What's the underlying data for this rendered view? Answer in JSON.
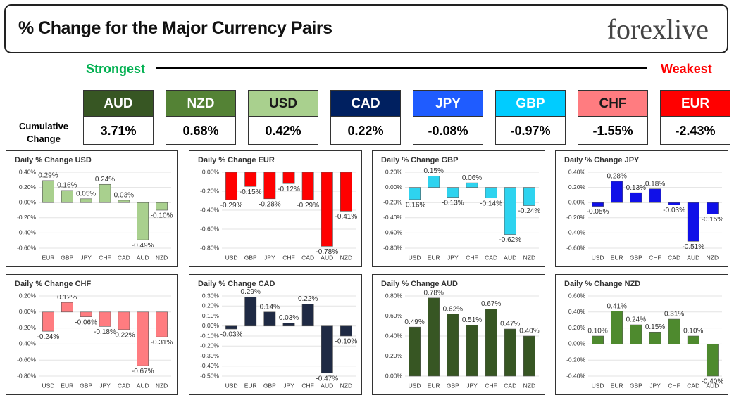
{
  "header": {
    "title": "% Change for the Major Currency Pairs",
    "brand": "forexlive"
  },
  "strength": {
    "strongest": "Strongest",
    "weakest": "Weakest",
    "row_label": "Cumulative Change",
    "currencies": [
      {
        "name": "AUD",
        "change": "3.71%",
        "color": "#375623"
      },
      {
        "name": "NZD",
        "change": "0.68%",
        "color": "#548235"
      },
      {
        "name": "USD",
        "change": "0.42%",
        "color": "#a9d08e"
      },
      {
        "name": "CAD",
        "change": "0.22%",
        "color": "#002060"
      },
      {
        "name": "JPY",
        "change": "-0.08%",
        "color": "#1f5cff"
      },
      {
        "name": "GBP",
        "change": "-0.97%",
        "color": "#00ccff"
      },
      {
        "name": "CHF",
        "change": "-1.55%",
        "color": "#ff7c80"
      },
      {
        "name": "EUR",
        "change": "-2.43%",
        "color": "#ff0000"
      }
    ]
  },
  "chart_data": [
    {
      "type": "bar",
      "title": "Daily % Change USD",
      "color": "#a9d08e",
      "categories": [
        "EUR",
        "GBP",
        "JPY",
        "CHF",
        "CAD",
        "AUD",
        "NZD"
      ],
      "values": [
        0.29,
        0.16,
        0.05,
        0.24,
        0.03,
        -0.49,
        -0.1
      ],
      "value_labels": [
        "0.29%",
        "0.16%",
        "0.05%",
        "0.24%",
        "0.03%",
        "-0.49%",
        "-0.10%"
      ],
      "ylim": [
        -0.6,
        0.4
      ],
      "yticks": [
        {
          "value": 0.4,
          "label": "0.40%"
        },
        {
          "value": 0.2,
          "label": "0.20%"
        },
        {
          "value": 0,
          "label": "0.00%"
        },
        {
          "value": -0.2,
          "label": "-0.20%"
        },
        {
          "value": -0.4,
          "label": "-0.40%"
        },
        {
          "value": -0.6,
          "label": "-0.60%"
        }
      ]
    },
    {
      "type": "bar",
      "title": "Daily % Change EUR",
      "color": "#ff0000",
      "categories": [
        "USD",
        "GBP",
        "JPY",
        "CHF",
        "CAD",
        "AUD",
        "NZD"
      ],
      "values": [
        -0.29,
        -0.15,
        -0.28,
        -0.12,
        -0.29,
        -0.78,
        -0.41
      ],
      "value_labels": [
        "-0.29%",
        "-0.15%",
        "-0.28%",
        "-0.12%",
        "-0.29%",
        "-0.78%",
        "-0.41%"
      ],
      "ylim": [
        -0.8,
        0
      ],
      "yticks": [
        {
          "value": 0,
          "label": "0.00%"
        },
        {
          "value": -0.2,
          "label": "-0.20%"
        },
        {
          "value": -0.4,
          "label": "-0.40%"
        },
        {
          "value": -0.6,
          "label": "-0.60%"
        },
        {
          "value": -0.8,
          "label": "-0.80%"
        }
      ]
    },
    {
      "type": "bar",
      "title": "Daily % Change GBP",
      "color": "#2ed3ef",
      "categories": [
        "USD",
        "EUR",
        "JPY",
        "CHF",
        "CAD",
        "AUD",
        "NZD"
      ],
      "values": [
        -0.16,
        0.15,
        -0.13,
        0.06,
        -0.14,
        -0.62,
        -0.24
      ],
      "value_labels": [
        "-0.16%",
        "0.15%",
        "-0.13%",
        "0.06%",
        "-0.14%",
        "-0.62%",
        "-0.24%"
      ],
      "ylim": [
        -0.8,
        0.2
      ],
      "yticks": [
        {
          "value": 0.2,
          "label": "0.20%"
        },
        {
          "value": 0,
          "label": "0.00%"
        },
        {
          "value": -0.2,
          "label": "-0.20%"
        },
        {
          "value": -0.4,
          "label": "-0.40%"
        },
        {
          "value": -0.6,
          "label": "-0.60%"
        },
        {
          "value": -0.8,
          "label": "-0.80%"
        }
      ]
    },
    {
      "type": "bar",
      "title": "Daily % Change JPY",
      "color": "#1010e8",
      "categories": [
        "USD",
        "EUR",
        "GBP",
        "CHF",
        "CAD",
        "AUD",
        "NZD"
      ],
      "values": [
        -0.05,
        0.28,
        0.13,
        0.18,
        -0.03,
        -0.51,
        -0.15
      ],
      "value_labels": [
        "-0.05%",
        "0.28%",
        "0.13%",
        "0.18%",
        "-0.03%",
        "-0.51%",
        "-0.15%"
      ],
      "ylim": [
        -0.6,
        0.4
      ],
      "yticks": [
        {
          "value": 0.4,
          "label": "0.40%"
        },
        {
          "value": 0.2,
          "label": "0.20%"
        },
        {
          "value": 0,
          "label": "0.00%"
        },
        {
          "value": -0.2,
          "label": "-0.20%"
        },
        {
          "value": -0.4,
          "label": "-0.40%"
        },
        {
          "value": -0.6,
          "label": "-0.60%"
        }
      ]
    },
    {
      "type": "bar",
      "title": "Daily % Change CHF",
      "color": "#ff7c80",
      "categories": [
        "USD",
        "EUR",
        "GBP",
        "JPY",
        "CAD",
        "AUD",
        "NZD"
      ],
      "values": [
        -0.24,
        0.12,
        -0.06,
        -0.18,
        -0.22,
        -0.67,
        -0.31
      ],
      "value_labels": [
        "-0.24%",
        "0.12%",
        "-0.06%",
        "-0.18%",
        "-0.22%",
        "-0.67%",
        "-0.31%"
      ],
      "ylim": [
        -0.8,
        0.2
      ],
      "yticks": [
        {
          "value": 0.2,
          "label": "0.20%"
        },
        {
          "value": 0,
          "label": "0.00%"
        },
        {
          "value": -0.2,
          "label": "-0.20%"
        },
        {
          "value": -0.4,
          "label": "-0.40%"
        },
        {
          "value": -0.6,
          "label": "-0.60%"
        },
        {
          "value": -0.8,
          "label": "-0.80%"
        }
      ]
    },
    {
      "type": "bar",
      "title": "Daily % Change CAD",
      "color": "#1f2a44",
      "categories": [
        "USD",
        "EUR",
        "GBP",
        "JPY",
        "CHF",
        "AUD",
        "NZD"
      ],
      "values": [
        -0.03,
        0.29,
        0.14,
        0.03,
        0.22,
        -0.47,
        -0.1
      ],
      "value_labels": [
        "-0.03%",
        "0.29%",
        "0.14%",
        "0.03%",
        "0.22%",
        "-0.47%",
        "-0.10%"
      ],
      "ylim": [
        -0.5,
        0.3
      ],
      "yticks": [
        {
          "value": 0.3,
          "label": "0.30%"
        },
        {
          "value": 0.2,
          "label": "0.20%"
        },
        {
          "value": 0.1,
          "label": "0.10%"
        },
        {
          "value": 0,
          "label": "0.00%"
        },
        {
          "value": -0.1,
          "label": "-0.10%"
        },
        {
          "value": -0.2,
          "label": "-0.20%"
        },
        {
          "value": -0.3,
          "label": "-0.30%"
        },
        {
          "value": -0.4,
          "label": "-0.40%"
        },
        {
          "value": -0.5,
          "label": "-0.50%"
        }
      ]
    },
    {
      "type": "bar",
      "title": "Daily % Change AUD",
      "color": "#375623",
      "categories": [
        "USD",
        "EUR",
        "GBP",
        "JPY",
        "CHF",
        "CAD",
        "NZD"
      ],
      "values": [
        0.49,
        0.78,
        0.62,
        0.51,
        0.67,
        0.47,
        0.4
      ],
      "value_labels": [
        "0.49%",
        "0.78%",
        "0.62%",
        "0.51%",
        "0.67%",
        "0.47%",
        "0.40%"
      ],
      "ylim": [
        0,
        0.8
      ],
      "yticks": [
        {
          "value": 0.8,
          "label": "0.80%"
        },
        {
          "value": 0.6,
          "label": "0.60%"
        },
        {
          "value": 0.4,
          "label": "0.40%"
        },
        {
          "value": 0.2,
          "label": "0.20%"
        },
        {
          "value": 0,
          "label": "0.00%"
        }
      ]
    },
    {
      "type": "bar",
      "title": "Daily % Change NZD",
      "color": "#4e8a2e",
      "categories": [
        "USD",
        "EUR",
        "GBP",
        "JPY",
        "CHF",
        "CAD",
        "AUD"
      ],
      "values": [
        0.1,
        0.41,
        0.24,
        0.15,
        0.31,
        0.1,
        -0.4
      ],
      "value_labels": [
        "0.10%",
        "0.41%",
        "0.24%",
        "0.15%",
        "0.31%",
        "0.10%",
        "-0.40%"
      ],
      "ylim": [
        -0.4,
        0.6
      ],
      "yticks": [
        {
          "value": 0.6,
          "label": "0.60%"
        },
        {
          "value": 0.4,
          "label": "0.40%"
        },
        {
          "value": 0.2,
          "label": "0.20%"
        },
        {
          "value": 0,
          "label": "0.00%"
        },
        {
          "value": -0.2,
          "label": "-0.20%"
        },
        {
          "value": -0.4,
          "label": "-0.40%"
        }
      ]
    }
  ]
}
